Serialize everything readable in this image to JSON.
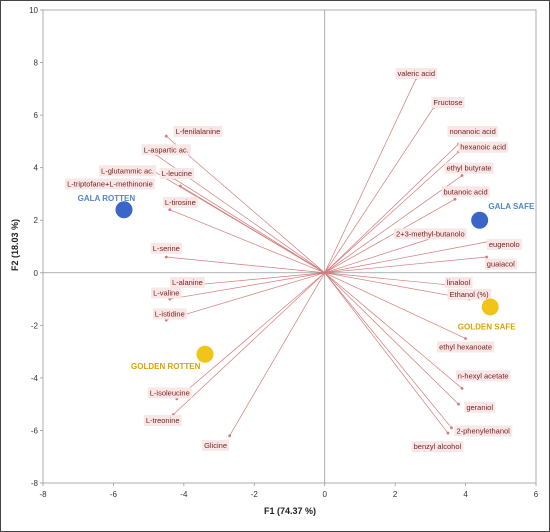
{
  "chart_data": {
    "type": "scatter",
    "title": "",
    "xlabel": "F1 (74.37 %)",
    "ylabel": "F2 (18.03 %)",
    "xlim": [
      -8,
      6
    ],
    "ylim": [
      -8,
      10
    ],
    "x_ticks": [
      -8,
      -6,
      -4,
      -2,
      0,
      2,
      4,
      6
    ],
    "y_ticks": [
      -8,
      -6,
      -4,
      -2,
      0,
      2,
      4,
      6,
      8,
      10
    ],
    "grid": false,
    "colors": {
      "vector_line": "#d47a7a",
      "vector_label": "#7a1e1e",
      "gala": "#3a66c8",
      "golden": "#f0c419",
      "gala_label": "#4f86c6",
      "golden_label": "#d9a400",
      "axis": "#999999",
      "frame": "#444444"
    },
    "vectors": [
      {
        "name": "valeric acid",
        "x": 2.6,
        "y": 7.4,
        "lx": 2.6,
        "ly": 7.6
      },
      {
        "name": "Fructose",
        "x": 3.1,
        "y": 6.3,
        "lx": 3.5,
        "ly": 6.5
      },
      {
        "name": "nonanoic acid",
        "x": 3.8,
        "y": 4.9,
        "lx": 4.2,
        "ly": 5.4
      },
      {
        "name": "hexanoic acid",
        "x": 3.8,
        "y": 4.6,
        "lx": 4.5,
        "ly": 4.8
      },
      {
        "name": "ethyl butyrate",
        "x": 3.9,
        "y": 3.7,
        "lx": 4.1,
        "ly": 4.0
      },
      {
        "name": "butanoic acid",
        "x": 3.7,
        "y": 2.8,
        "lx": 4.0,
        "ly": 3.1
      },
      {
        "name": "2+3-methyl-butanolo",
        "x": 3.7,
        "y": 1.6,
        "lx": 3.0,
        "ly": 1.5
      },
      {
        "name": "eugenolo",
        "x": 4.7,
        "y": 1.2,
        "lx": 5.1,
        "ly": 1.1
      },
      {
        "name": "guaiacol",
        "x": 4.6,
        "y": 0.6,
        "lx": 5.0,
        "ly": 0.35
      },
      {
        "name": "linalool",
        "x": 3.8,
        "y": -0.5,
        "lx": 3.8,
        "ly": -0.35
      },
      {
        "name": "Ethanol (%)",
        "x": 4.1,
        "y": -1.0,
        "lx": 4.1,
        "ly": -0.8
      },
      {
        "name": "ethyl hexanoate",
        "x": 4.0,
        "y": -2.5,
        "lx": 4.0,
        "ly": -2.8
      },
      {
        "name": "n-hexyl acetate",
        "x": 3.9,
        "y": -4.4,
        "lx": 4.5,
        "ly": -3.9
      },
      {
        "name": "geraniol",
        "x": 3.8,
        "y": -5.0,
        "lx": 4.4,
        "ly": -5.1
      },
      {
        "name": "2-phenylethanol",
        "x": 3.6,
        "y": -5.9,
        "lx": 4.5,
        "ly": -6.0
      },
      {
        "name": "benzyl alcohol",
        "x": 3.5,
        "y": -6.1,
        "lx": 3.2,
        "ly": -6.6
      },
      {
        "name": "L-fenilalanine",
        "x": -4.5,
        "y": 5.2,
        "lx": -3.6,
        "ly": 5.4
      },
      {
        "name": "L-aspartic ac.",
        "x": -4.8,
        "y": 4.5,
        "lx": -4.5,
        "ly": 4.7
      },
      {
        "name": "L-glutammic ac.",
        "x": -4.9,
        "y": 3.9,
        "lx": -5.6,
        "ly": 3.9
      },
      {
        "name": "L-leucine",
        "x": -4.3,
        "y": 3.6,
        "lx": -4.2,
        "ly": 3.8
      },
      {
        "name": "L-triptofane+L-methinonie",
        "x": -4.1,
        "y": 3.3,
        "lx": -6.1,
        "ly": 3.4
      },
      {
        "name": "L-tirosine",
        "x": -4.4,
        "y": 2.4,
        "lx": -4.1,
        "ly": 2.7
      },
      {
        "name": "L-serine",
        "x": -4.5,
        "y": 0.6,
        "lx": -4.5,
        "ly": 0.95
      },
      {
        "name": "L-alanine",
        "x": -4.0,
        "y": -0.5,
        "lx": -3.9,
        "ly": -0.35
      },
      {
        "name": "L-valine",
        "x": -4.4,
        "y": -1.0,
        "lx": -4.5,
        "ly": -0.75
      },
      {
        "name": "L-istidine",
        "x": -4.5,
        "y": -1.8,
        "lx": -4.4,
        "ly": -1.55
      },
      {
        "name": "L-isoleucine",
        "x": -4.2,
        "y": -4.8,
        "lx": -4.4,
        "ly": -4.55
      },
      {
        "name": "L-treonine",
        "x": -4.3,
        "y": -5.4,
        "lx": -4.6,
        "ly": -5.6
      },
      {
        "name": "Glicine",
        "x": -2.7,
        "y": -6.2,
        "lx": -3.1,
        "ly": -6.55
      }
    ],
    "samples": [
      {
        "name": "GALA ROTTEN",
        "x": -5.7,
        "y": 2.4,
        "lx": -6.2,
        "ly": 2.85,
        "group": "gala",
        "anchor": "middle"
      },
      {
        "name": "GALA SAFE",
        "x": 4.4,
        "y": 2.0,
        "lx": 5.3,
        "ly": 2.55,
        "group": "gala",
        "anchor": "middle"
      },
      {
        "name": "GOLDEN ROTTEN",
        "x": -3.4,
        "y": -3.1,
        "lx": -5.5,
        "ly": -3.55,
        "group": "golden",
        "anchor": "start"
      },
      {
        "name": "GOLDEN SAFE",
        "x": 4.7,
        "y": -1.3,
        "lx": 4.6,
        "ly": -2.05,
        "group": "golden",
        "anchor": "middle"
      }
    ]
  }
}
